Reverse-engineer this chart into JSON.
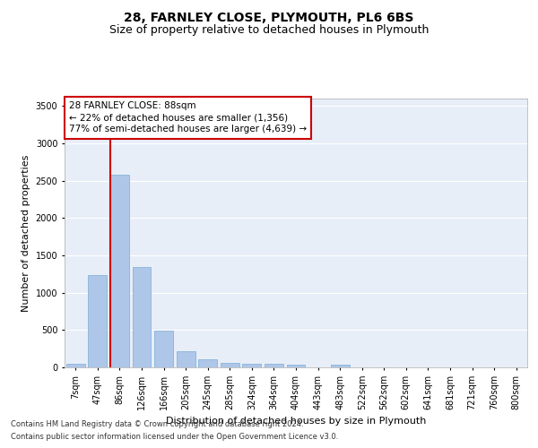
{
  "title1": "28, FARNLEY CLOSE, PLYMOUTH, PL6 6BS",
  "title2": "Size of property relative to detached houses in Plymouth",
  "xlabel": "Distribution of detached houses by size in Plymouth",
  "ylabel": "Number of detached properties",
  "categories": [
    "7sqm",
    "47sqm",
    "86sqm",
    "126sqm",
    "166sqm",
    "205sqm",
    "245sqm",
    "285sqm",
    "324sqm",
    "364sqm",
    "404sqm",
    "443sqm",
    "483sqm",
    "522sqm",
    "562sqm",
    "602sqm",
    "641sqm",
    "681sqm",
    "721sqm",
    "760sqm",
    "800sqm"
  ],
  "values": [
    50,
    1240,
    2580,
    1340,
    490,
    220,
    110,
    55,
    50,
    50,
    40,
    0,
    40,
    0,
    0,
    0,
    0,
    0,
    0,
    0,
    0
  ],
  "bar_color": "#aec6e8",
  "bar_edge_color": "#7aadd4",
  "vline_x_index": 2,
  "vline_color": "#cc0000",
  "annotation_line1": "28 FARNLEY CLOSE: 88sqm",
  "annotation_line2": "← 22% of detached houses are smaller (1,356)",
  "annotation_line3": "77% of semi-detached houses are larger (4,639) →",
  "ylim": [
    0,
    3600
  ],
  "yticks": [
    0,
    500,
    1000,
    1500,
    2000,
    2500,
    3000,
    3500
  ],
  "plot_bg_color": "#e8eef8",
  "grid_color": "#ffffff",
  "footer_line1": "Contains HM Land Registry data © Crown copyright and database right 2024.",
  "footer_line2": "Contains public sector information licensed under the Open Government Licence v3.0.",
  "title1_fontsize": 10,
  "title2_fontsize": 9,
  "xlabel_fontsize": 8,
  "ylabel_fontsize": 8,
  "tick_fontsize": 7,
  "ann_fontsize": 7.5
}
